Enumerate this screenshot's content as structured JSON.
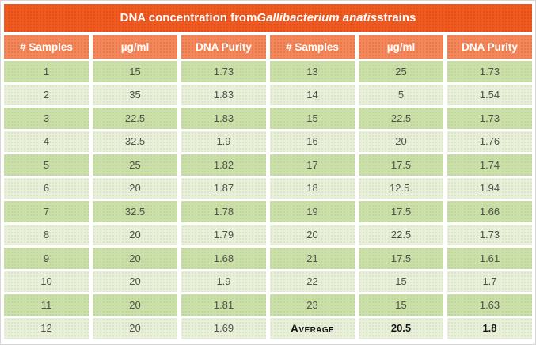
{
  "title": {
    "prefix": "DNA concentration from ",
    "italic": "Gallibacterium anatis",
    "suffix": " strains"
  },
  "table": {
    "header": [
      "# Samples",
      "µg/ml",
      "DNA Purity",
      "# Samples",
      "µg/ml",
      "DNA Purity"
    ],
    "rows": [
      [
        "1",
        "15",
        "1.73",
        "13",
        "25",
        "1.73"
      ],
      [
        "2",
        "35",
        "1.83",
        "14",
        "5",
        "1.54"
      ],
      [
        "3",
        "22.5",
        "1.83",
        "15",
        "22.5",
        "1.73"
      ],
      [
        "4",
        "32.5",
        "1.9",
        "16",
        "20",
        "1.76"
      ],
      [
        "5",
        "25",
        "1.82",
        "17",
        "17.5",
        "1.74"
      ],
      [
        "6",
        "20",
        "1.87",
        "18",
        "12.5.",
        "1.94"
      ],
      [
        "7",
        "32.5",
        "1.78",
        "19",
        "17.5",
        "1.66"
      ],
      [
        "8",
        "20",
        "1.79",
        "20",
        "22.5",
        "1.73"
      ],
      [
        "9",
        "20",
        "1.68",
        "21",
        "17.5",
        "1.61"
      ],
      [
        "10",
        "20",
        "1.9",
        "22",
        "15",
        "1.7"
      ],
      [
        "11",
        "20",
        "1.81",
        "23",
        "15",
        "1.63"
      ],
      [
        "12",
        "20",
        "1.69",
        "Average",
        "20.5",
        "1.8"
      ]
    ],
    "average_label": "Average"
  },
  "colors": {
    "title_bg": "#F0591F",
    "header_bg": "#F2875B",
    "row_dark": "#CBDFA9",
    "row_light": "#E8F0DA",
    "text_color": "#50524A",
    "average_text": "#141414",
    "frame_border": "#D6D6D6"
  },
  "chart_data": {
    "type": "table",
    "title": "DNA concentration from Gallibacterium anatis strains",
    "columns": [
      "# Samples",
      "µg/ml",
      "DNA Purity"
    ],
    "rows": [
      [
        1,
        15,
        1.73
      ],
      [
        2,
        35,
        1.83
      ],
      [
        3,
        22.5,
        1.83
      ],
      [
        4,
        32.5,
        1.9
      ],
      [
        5,
        25,
        1.82
      ],
      [
        6,
        20,
        1.87
      ],
      [
        7,
        32.5,
        1.78
      ],
      [
        8,
        20,
        1.79
      ],
      [
        9,
        20,
        1.68
      ],
      [
        10,
        20,
        1.9
      ],
      [
        11,
        20,
        1.81
      ],
      [
        12,
        20,
        1.69
      ],
      [
        13,
        25,
        1.73
      ],
      [
        14,
        5,
        1.54
      ],
      [
        15,
        22.5,
        1.73
      ],
      [
        16,
        20,
        1.76
      ],
      [
        17,
        17.5,
        1.74
      ],
      [
        18,
        "12.5.",
        1.94
      ],
      [
        19,
        17.5,
        1.66
      ],
      [
        20,
        22.5,
        1.73
      ],
      [
        21,
        17.5,
        1.61
      ],
      [
        22,
        15,
        1.7
      ],
      [
        23,
        15,
        1.63
      ]
    ],
    "average": {
      "ug_per_ml": 20.5,
      "dna_purity": 1.8
    },
    "layout": "two side-by-side column groups of 3 columns each; rows 1-12 left, rows 13-23 plus average row right"
  }
}
